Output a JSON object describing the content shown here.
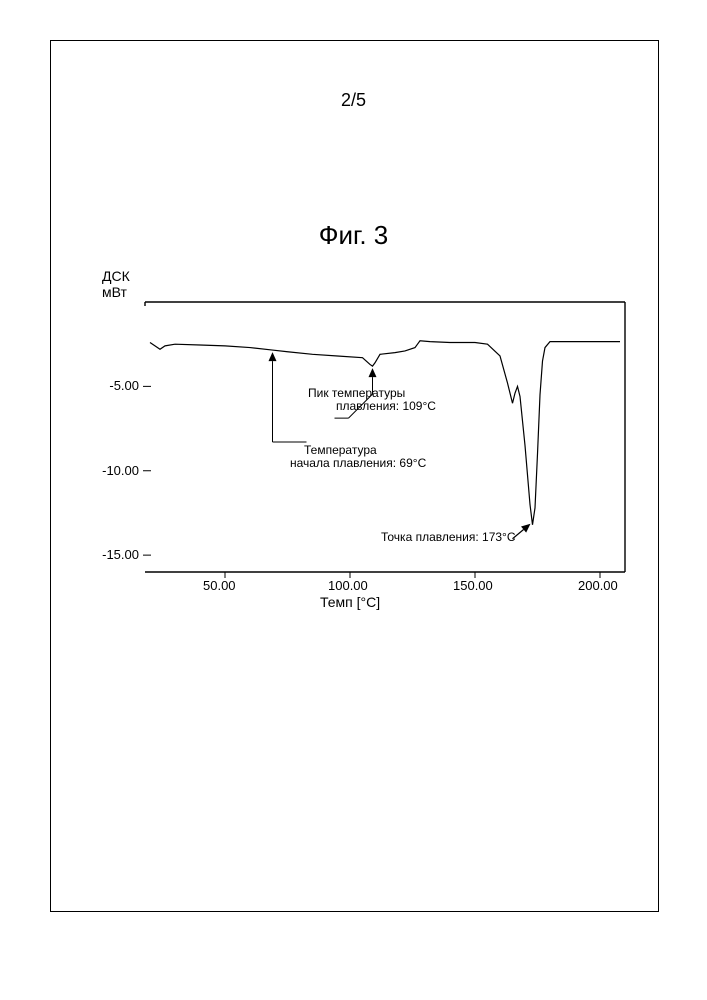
{
  "page_number": "2/5",
  "figure_title": "Фиг. 3",
  "chart": {
    "type": "line",
    "y_axis": {
      "label_line1": "ДСК",
      "label_line2": "мВт",
      "ticks": [
        -5.0,
        -10.0,
        -15.0
      ],
      "tick_labels": [
        "-5.00",
        "-10.00",
        "-15.00"
      ],
      "range_min": -16,
      "range_max": 0,
      "label_fontsize": 14,
      "tick_fontsize": 13
    },
    "x_axis": {
      "label": "Темп [°C]",
      "ticks": [
        50.0,
        100.0,
        150.0,
        200.0
      ],
      "tick_labels": [
        "50.00",
        "100.00",
        "150.00",
        "200.00"
      ],
      "range_min": 18,
      "range_max": 210,
      "label_fontsize": 14,
      "tick_fontsize": 13
    },
    "line_color": "#000000",
    "line_width": 1.2,
    "background_color": "#ffffff",
    "data_points": [
      [
        20,
        -2.4
      ],
      [
        22,
        -2.6
      ],
      [
        24,
        -2.8
      ],
      [
        26,
        -2.6
      ],
      [
        30,
        -2.5
      ],
      [
        40,
        -2.55
      ],
      [
        50,
        -2.6
      ],
      [
        60,
        -2.7
      ],
      [
        69,
        -2.85
      ],
      [
        75,
        -2.95
      ],
      [
        85,
        -3.1
      ],
      [
        95,
        -3.2
      ],
      [
        105,
        -3.3
      ],
      [
        108,
        -3.7
      ],
      [
        109,
        -3.8
      ],
      [
        110,
        -3.6
      ],
      [
        112,
        -3.1
      ],
      [
        118,
        -3.0
      ],
      [
        122,
        -2.9
      ],
      [
        126,
        -2.7
      ],
      [
        127,
        -2.5
      ],
      [
        128,
        -2.3
      ],
      [
        132,
        -2.35
      ],
      [
        140,
        -2.4
      ],
      [
        150,
        -2.4
      ],
      [
        155,
        -2.5
      ],
      [
        160,
        -3.2
      ],
      [
        163,
        -4.8
      ],
      [
        165,
        -6.0
      ],
      [
        166,
        -5.4
      ],
      [
        167,
        -5.0
      ],
      [
        168,
        -5.6
      ],
      [
        170,
        -8.5
      ],
      [
        172,
        -12.0
      ],
      [
        173,
        -13.2
      ],
      [
        174,
        -12.2
      ],
      [
        175,
        -9.0
      ],
      [
        176,
        -5.5
      ],
      [
        177,
        -3.5
      ],
      [
        178,
        -2.7
      ],
      [
        180,
        -2.35
      ],
      [
        190,
        -2.35
      ],
      [
        200,
        -2.35
      ],
      [
        208,
        -2.35
      ]
    ],
    "frame_top": true,
    "frame_right": true,
    "frame_bottom": true,
    "frame_left_partial": false
  },
  "annotations": {
    "peak_temp": {
      "line1": "Пик температуры",
      "line2": "плавления: 109°C",
      "fontsize": 12
    },
    "onset_temp": {
      "line1": "Температура",
      "line2": "начала плавления: 69°C",
      "fontsize": 12
    },
    "melting_point": {
      "text": "Точка плавления: 173°C",
      "fontsize": 12
    }
  },
  "colors": {
    "text": "#000000",
    "line": "#000000",
    "background": "#ffffff",
    "border": "#000000"
  }
}
